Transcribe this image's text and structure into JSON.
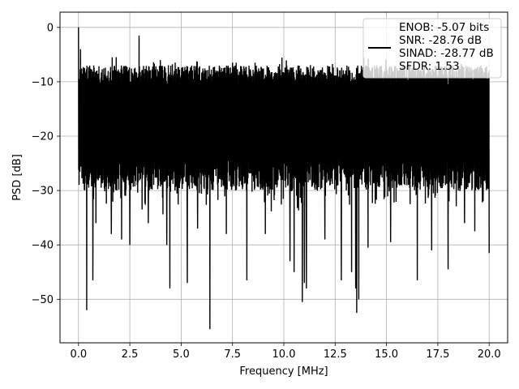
{
  "chart_data": {
    "type": "line",
    "title": "",
    "xlabel": "Frequency [MHz]",
    "ylabel": "PSD [dB]",
    "xlim": [
      -0.9,
      20.9
    ],
    "ylim": [
      -58,
      2.8
    ],
    "xticks": [
      0.0,
      2.5,
      5.0,
      7.5,
      10.0,
      12.5,
      15.0,
      17.5,
      20.0
    ],
    "xtick_labels": [
      "0.0",
      "2.5",
      "5.0",
      "7.5",
      "10.0",
      "12.5",
      "15.0",
      "17.5",
      "20.0"
    ],
    "yticks": [
      0,
      -10,
      -20,
      -30,
      -40,
      -50
    ],
    "ytick_labels": [
      "0",
      "−10",
      "−20",
      "−30",
      "−40",
      "−50"
    ],
    "grid": true,
    "legend_position": "top-right",
    "legend_lines": [
      "ENOB: -5.07 bits",
      "SNR: -28.76 dB",
      "SINAD: -28.77 dB",
      "SFDR: 1.53"
    ],
    "series": [
      {
        "color": "#000000",
        "x_range": [
          0,
          20
        ],
        "points": 2048,
        "band_top_db": -7,
        "band_bottom_db": -30,
        "peak": {
          "x": 0.0,
          "y": 0.0
        },
        "spikes": [
          {
            "x": 0.02,
            "y": -10.0
          },
          {
            "x": 0.1,
            "y": -4.0
          },
          {
            "x": 0.4,
            "y": -52.0
          },
          {
            "x": 0.7,
            "y": -46.5
          },
          {
            "x": 0.85,
            "y": -36.0
          },
          {
            "x": 1.6,
            "y": -38.0
          },
          {
            "x": 2.1,
            "y": -39.0
          },
          {
            "x": 2.5,
            "y": -40.0
          },
          {
            "x": 2.95,
            "y": -1.5
          },
          {
            "x": 3.4,
            "y": -36.0
          },
          {
            "x": 4.3,
            "y": -40.0
          },
          {
            "x": 4.45,
            "y": -48.0
          },
          {
            "x": 5.3,
            "y": -47.0
          },
          {
            "x": 5.8,
            "y": -37.0
          },
          {
            "x": 6.4,
            "y": -55.5
          },
          {
            "x": 7.2,
            "y": -38.0
          },
          {
            "x": 8.2,
            "y": -46.5
          },
          {
            "x": 8.6,
            "y": -6.5
          },
          {
            "x": 9.1,
            "y": -38.0
          },
          {
            "x": 10.3,
            "y": -43.0
          },
          {
            "x": 10.5,
            "y": -45.0
          },
          {
            "x": 10.9,
            "y": -50.5
          },
          {
            "x": 11.0,
            "y": -47.0
          },
          {
            "x": 11.1,
            "y": -48.0
          },
          {
            "x": 12.0,
            "y": -39.0
          },
          {
            "x": 12.8,
            "y": -46.5
          },
          {
            "x": 13.3,
            "y": -45.0
          },
          {
            "x": 13.5,
            "y": -48.0
          },
          {
            "x": 13.55,
            "y": -52.5
          },
          {
            "x": 13.65,
            "y": -50.0
          },
          {
            "x": 14.1,
            "y": -40.5
          },
          {
            "x": 15.2,
            "y": -39.5
          },
          {
            "x": 16.5,
            "y": -46.5
          },
          {
            "x": 17.2,
            "y": -41.0
          },
          {
            "x": 18.0,
            "y": -44.5
          },
          {
            "x": 18.8,
            "y": -36.0
          },
          {
            "x": 19.3,
            "y": -37.5
          },
          {
            "x": 20.0,
            "y": -41.5
          }
        ]
      }
    ]
  }
}
